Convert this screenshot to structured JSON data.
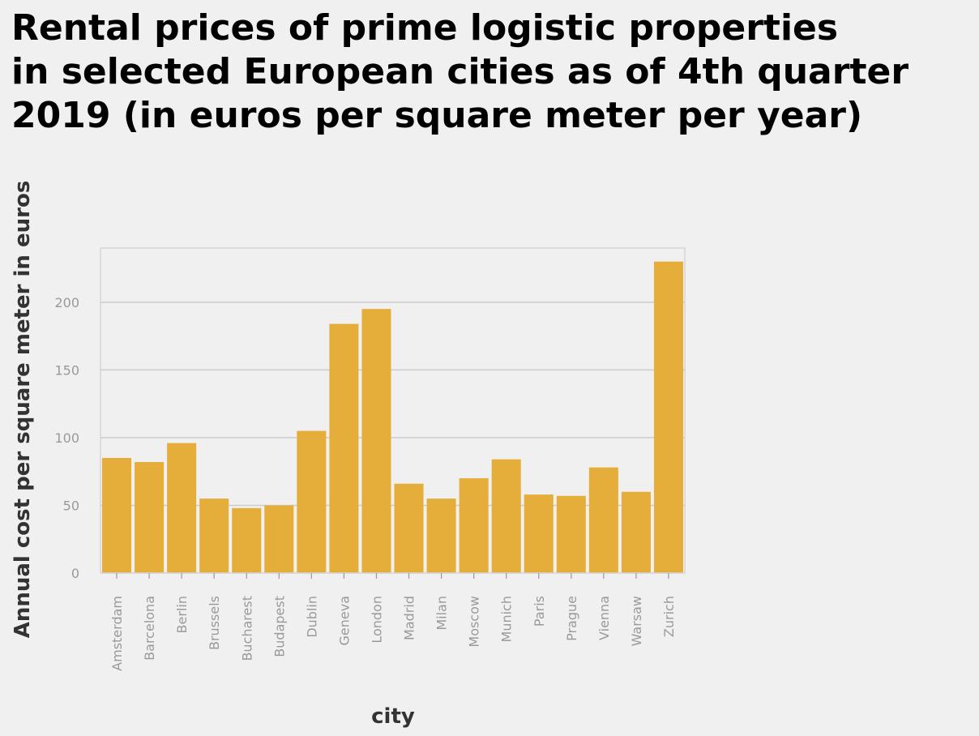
{
  "title_lines": [
    "Rental prices of prime logistic properties",
    "in selected European cities as of 4th quarter",
    "2019 (in euros per square meter per year)"
  ],
  "chart_data": {
    "type": "bar",
    "title": "Rental prices of prime logistic properties in selected European cities as of 4th quarter 2019 (in euros per square meter per year)",
    "xlabel": "city",
    "ylabel": "Annual cost per square meter in euros",
    "categories": [
      "Amsterdam",
      "Barcelona",
      "Berlin",
      "Brussels",
      "Bucharest",
      "Budapest",
      "Dublin",
      "Geneva",
      "London",
      "Madrid",
      "Milan",
      "Moscow",
      "Munich",
      "Paris",
      "Prague",
      "Vienna",
      "Warsaw",
      "Zurich"
    ],
    "values": [
      85,
      82,
      96,
      55,
      48,
      50,
      105,
      184,
      195,
      66,
      55,
      70,
      84,
      58,
      57,
      78,
      60,
      230
    ],
    "ylim": [
      0,
      240
    ],
    "yticks": [
      0,
      50,
      100,
      150,
      200
    ],
    "grid": true,
    "bar_color": "#e5ae3a",
    "grid_color": "#cccccc"
  }
}
